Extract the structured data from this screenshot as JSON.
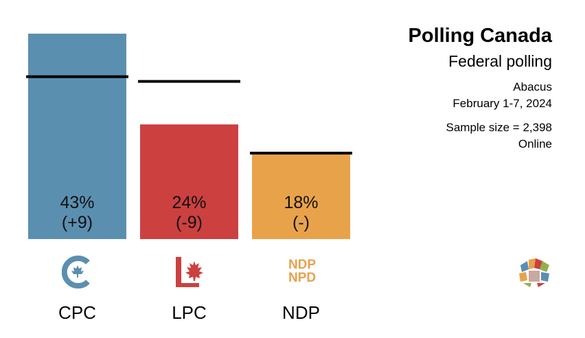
{
  "header": {
    "title": "Polling Canada",
    "subtitle": "Federal polling",
    "pollster": "Abacus",
    "dates": "February 1-7, 2024",
    "sample_size": "Sample size = 2,398",
    "method": "Online"
  },
  "chart_data": {
    "type": "bar",
    "title": "Polling Canada",
    "subtitle": "Federal polling",
    "categories": [
      "CPC",
      "LPC",
      "NDP"
    ],
    "values": [
      43,
      24,
      18
    ],
    "previous_values": [
      34,
      33,
      18
    ],
    "value_labels": [
      "43%",
      "24%",
      "18%"
    ],
    "change_labels": [
      "(+9)",
      "(-9)",
      "(-)"
    ],
    "colors": [
      "#5b8fb0",
      "#cc4040",
      "#e8a24a"
    ],
    "ylim": [
      0,
      43
    ],
    "xlabel": "",
    "ylabel": "",
    "grid": false,
    "legend": "none"
  },
  "logos": {
    "cpc": "cpc-logo-icon",
    "lpc": "lpc-logo-icon",
    "ndp": "ndp-logo-icon",
    "ndp_text_top": "NDP",
    "ndp_text_bottom": "NPD",
    "brand": "polling-canada-logo-icon"
  }
}
